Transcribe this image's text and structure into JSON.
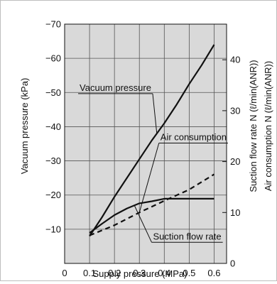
{
  "chart_data": {
    "type": "line",
    "title": "",
    "xlabel": "Supply pressure (MPa)",
    "ylabel_left": "Vacuum pressure (kPa)",
    "ylabel_right_inner": "Suction flow rate N (ℓ/min(ANR))",
    "ylabel_right_outer": "Air consumption N (ℓ/min(ANR))",
    "xlim": [
      0,
      0.65
    ],
    "ylim_left": [
      0,
      -70
    ],
    "ylim_right": [
      0,
      47
    ],
    "x_ticks": [
      "0",
      "0.1",
      "0.2",
      "0.3",
      "0.4",
      "0.5",
      "0.6"
    ],
    "y_left_ticks": [
      "−70",
      "−60",
      "−50",
      "−40",
      "−30",
      "−20",
      "−10"
    ],
    "y_right_ticks": [
      "40",
      "30",
      "20",
      "10",
      "0"
    ],
    "grid": true,
    "background_color": "#d9d9d9",
    "series": [
      {
        "name": "Vacuum pressure",
        "axis": "left",
        "style": "solid",
        "x": [
          0.1,
          0.15,
          0.2,
          0.25,
          0.3,
          0.35,
          0.4,
          0.45,
          0.5,
          0.55,
          0.6
        ],
        "y": [
          -8,
          -13.5,
          -19.5,
          -25,
          -30.5,
          -36,
          -41,
          -46.5,
          -52.5,
          -58,
          -64
        ]
      },
      {
        "name": "Air consumption",
        "axis": "right",
        "style": "dashed",
        "x": [
          0.1,
          0.2,
          0.3,
          0.4,
          0.5,
          0.6
        ],
        "y": [
          5.5,
          7.5,
          10,
          12.3,
          14.5,
          17.5
        ]
      },
      {
        "name": "Suction flow rate",
        "axis": "right",
        "style": "solid",
        "x": [
          0.1,
          0.15,
          0.2,
          0.25,
          0.3,
          0.35,
          0.4,
          0.5,
          0.6
        ],
        "y": [
          6,
          7.8,
          9.5,
          10.8,
          11.8,
          12.2,
          12.7,
          12.7,
          12.7
        ]
      }
    ]
  }
}
